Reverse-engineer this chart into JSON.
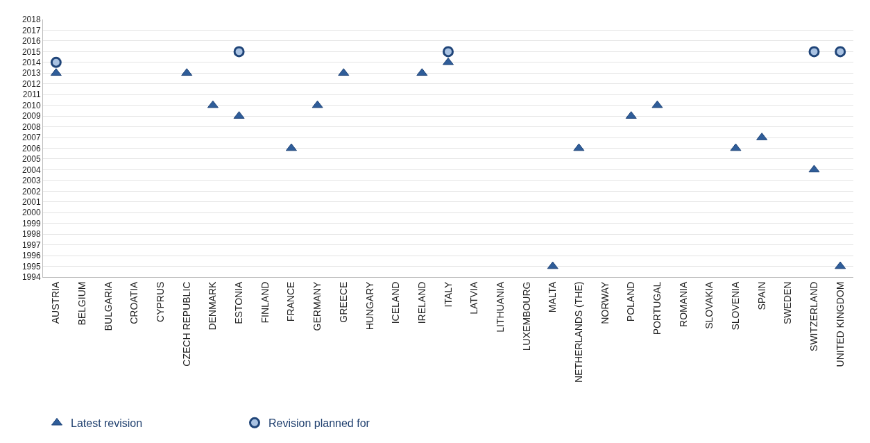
{
  "chart_data": {
    "type": "scatter",
    "categories": [
      "AUSTRIA",
      "BELGIUM",
      "BULGARIA",
      "CROATIA",
      "CYPRUS",
      "CZECH REPUBLIC",
      "DENMARK",
      "ESTONIA",
      "FINLAND",
      "FRANCE",
      "GERMANY",
      "GREECE",
      "HUNGARY",
      "ICELAND",
      "IRELAND",
      "ITALY",
      "LATVIA",
      "LITHUANIA",
      "LUXEMBOURG",
      "MALTA",
      "NETHERLANDS (THE)",
      "NORWAY",
      "POLAND",
      "PORTUGAL",
      "ROMANIA",
      "SLOVAKIA",
      "SLOVENIA",
      "SPAIN",
      "SWEDEN",
      "SWITZERLAND",
      "UNITED KINGDOM"
    ],
    "series": [
      {
        "name": "Latest revision",
        "color": "#2f5d99",
        "marker": "triangle",
        "values": [
          2013,
          null,
          null,
          null,
          null,
          2013,
          2010,
          2009,
          null,
          2006,
          2010,
          2013,
          null,
          null,
          2013,
          2014,
          null,
          null,
          null,
          1995,
          2006,
          null,
          2009,
          2010,
          null,
          null,
          2006,
          2007,
          null,
          2004,
          1995
        ]
      },
      {
        "name": "Revision planned for",
        "color": "#a9c2e2",
        "marker": "circle",
        "values": [
          2014,
          null,
          null,
          null,
          null,
          null,
          null,
          2015,
          null,
          null,
          null,
          null,
          null,
          null,
          null,
          2015,
          null,
          null,
          null,
          null,
          null,
          null,
          null,
          null,
          null,
          null,
          null,
          null,
          null,
          2015,
          2015
        ]
      }
    ],
    "ylim": [
      1994,
      2018
    ],
    "yticks": [
      1994,
      1995,
      1996,
      1997,
      1998,
      1999,
      2000,
      2001,
      2002,
      2003,
      2004,
      2005,
      2006,
      2007,
      2008,
      2009,
      2010,
      2011,
      2012,
      2013,
      2014,
      2015,
      2016,
      2017,
      2018
    ],
    "grid": "y",
    "legend": "bottom left"
  }
}
